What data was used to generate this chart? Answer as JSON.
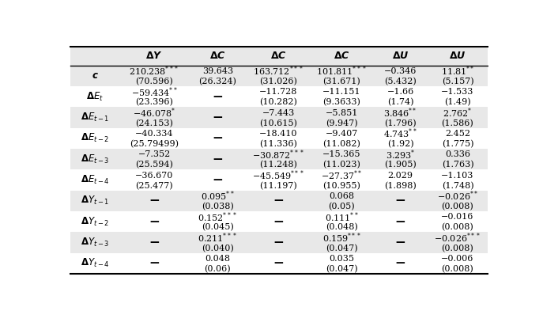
{
  "col_headers": [
    "ΔY",
    "ΔC",
    "ΔC",
    "ΔC",
    "ΔU",
    "ΔU"
  ],
  "cells": [
    [
      "210.238***\n(70.596)",
      "39.643\n(26.324)",
      "163.712***\n(31.026)",
      "101.811***\n(31.671)",
      "−0.346\n(5.432)",
      "11.81**\n(5.157)"
    ],
    [
      "−59.434**\n(23.396)",
      "—",
      "−11.728\n(10.282)",
      "−11.151\n(9.3633)",
      "−1.66\n(1.74)",
      "−1.533\n(1.49)"
    ],
    [
      "−46.078*\n(24.153)",
      "—",
      "−7.443\n(10.615)",
      "−5.851\n(9.947)",
      "3.846**\n(1.796)",
      "2.762*\n(1.586)"
    ],
    [
      "−40.334\n(25.79499)",
      "—",
      "−18.410\n(11.336)",
      "−9.407\n(11.082)",
      "4.743**\n(1.92)",
      "2.452\n(1.775)"
    ],
    [
      "−7.352\n(25.594)",
      "—",
      "−30.872***\n(11.248)",
      "−15.365\n(11.023)",
      "3.293*\n(1.905)",
      "0.336\n(1.763)"
    ],
    [
      "−36.670\n(25.477)",
      "—",
      "−45.549***\n(11.197)",
      "−27.37**\n(10.955)",
      "2.029\n(1.898)",
      "−1.103\n(1.748)"
    ],
    [
      "—",
      "0.095**\n(0.038)",
      "—",
      "0.068\n(0.05)",
      "—",
      "−0.026**\n(0.008)"
    ],
    [
      "—",
      "0.152***\n(0.045)",
      "—",
      "0.111**\n(0.048)",
      "—",
      "−0.016\n(0.008)"
    ],
    [
      "—",
      "0.211***\n(0.040)",
      "—",
      "0.159***\n(0.047)",
      "—",
      "−0.026***\n(0.008)"
    ],
    [
      "—",
      "0.048\n(0.06)",
      "—",
      "0.035\n(0.047)",
      "—",
      "−0.006\n(0.008)"
    ]
  ],
  "shaded_rows": [
    0,
    2,
    4,
    6,
    8
  ],
  "shade_color": "#e8e8e8",
  "font_size": 8.0,
  "header_font_size": 9.0
}
